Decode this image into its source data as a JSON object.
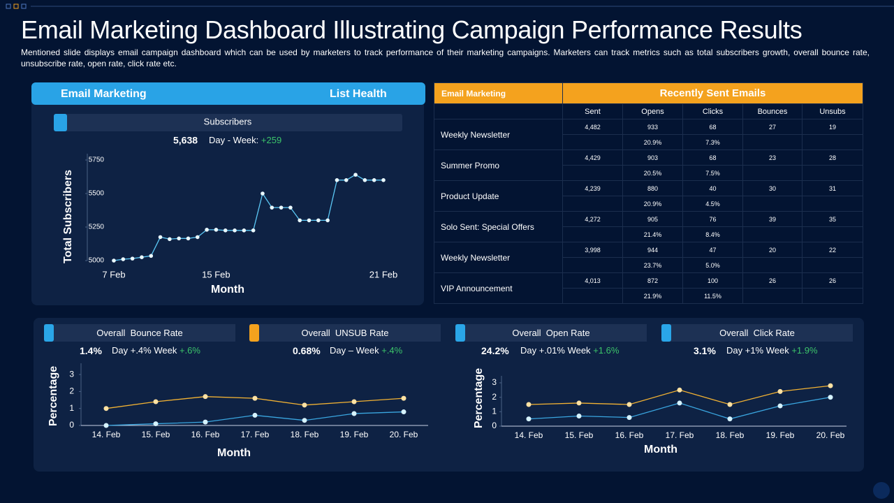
{
  "header": {
    "title": "Email Marketing Dashboard Illustrating Campaign Performance Results",
    "subtitle": "Mentioned slide displays email campaign dashboard which can be used by marketers to track performance  of their marketing campaigns. Marketers can track metrics such as total subscribers growth, overall bounce rate, unsubscribe rate, open rate, click rate etc."
  },
  "list_health": {
    "left_title": "Email Marketing",
    "right_title": "List Health",
    "panel_label": "Subscribers",
    "total": "5,638",
    "change_label": "Day - Week:",
    "change": "+259"
  },
  "table": {
    "left_title": "Email Marketing",
    "right_title": "Recently Sent Emails",
    "columns": [
      "Sent",
      "Opens",
      "Clicks",
      "Bounces",
      "Unsubs"
    ],
    "rows": [
      {
        "name": "Weekly Newsletter",
        "values": [
          "4,482",
          "933",
          "68",
          "27",
          "19"
        ],
        "rates": [
          "20.9%",
          "7.3%"
        ]
      },
      {
        "name": "Summer Promo",
        "values": [
          "4,429",
          "903",
          "68",
          "23",
          "28"
        ],
        "rates": [
          "20.5%",
          "7.5%"
        ]
      },
      {
        "name": "Product Update",
        "values": [
          "4,239",
          "880",
          "40",
          "30",
          "31"
        ],
        "rates": [
          "20.9%",
          "4.5%"
        ]
      },
      {
        "name": "Solo Sent: Special Offers",
        "values": [
          "4,272",
          "905",
          "76",
          "39",
          "35"
        ],
        "rates": [
          "21.4%",
          "8.4%"
        ]
      },
      {
        "name": "Weekly Newsletter",
        "values": [
          "3,998",
          "944",
          "47",
          "20",
          "22"
        ],
        "rates": [
          "23.7%",
          "5.0%"
        ]
      },
      {
        "name": "VIP Announcement",
        "values": [
          "4,013",
          "872",
          "100",
          "26",
          "26"
        ],
        "rates": [
          "21.9%",
          "11.5%"
        ]
      }
    ]
  },
  "kpis": [
    {
      "label": "Overall  Bounce Rate",
      "value": "1.4%",
      "change": "Day +.4% Week",
      "week": "+.6%",
      "color": "#2aa6e8"
    },
    {
      "label": "Overall  UNSUB Rate",
      "value": "0.68%",
      "change": "Day – Week",
      "week": "+.4%",
      "color": "#f4a21e"
    },
    {
      "label": "Overall  Open Rate",
      "value": "24.2%",
      "change": "Day +.01% Week",
      "week": "+1.6%",
      "color": "#2aa6e8"
    },
    {
      "label": "Overall  Click Rate",
      "value": "3.1%",
      "change": "Day +1% Week",
      "week": "+1.9%",
      "color": "#2aa6e8"
    }
  ],
  "chart_data": [
    {
      "type": "line",
      "x_label": "Month",
      "y_label": "Total Subscribers",
      "categories": [
        "7 Feb",
        null,
        null,
        null,
        null,
        null,
        null,
        null,
        null,
        null,
        null,
        "15 Feb",
        null,
        null,
        null,
        null,
        null,
        null,
        null,
        null,
        null,
        null,
        null,
        null,
        null,
        null,
        null,
        null,
        null,
        "21 Feb"
      ],
      "series": [
        {
          "color": "#5bc8f5",
          "values": [
            5000,
            5010,
            5015,
            5025,
            5035,
            5175,
            5160,
            5165,
            5165,
            5175,
            5230,
            5230,
            5225,
            5225,
            5225,
            5225,
            5500,
            5395,
            5395,
            5395,
            5300,
            5300,
            5300,
            5300,
            5600,
            5600,
            5640,
            5600,
            5600,
            5600
          ]
        }
      ],
      "ylim": [
        5000,
        5750
      ],
      "yticks": [
        5000,
        5250,
        5500,
        5750
      ]
    },
    {
      "type": "line",
      "x_label": "Month",
      "y_label": "Percentage",
      "categories": [
        "14. Feb",
        "15. Feb",
        "16. Feb",
        "17. Feb",
        "18. Feb",
        "19. Feb",
        "20. Feb"
      ],
      "series": [
        {
          "color": "#f2b233",
          "values": [
            1.0,
            1.4,
            1.7,
            1.6,
            1.2,
            1.4,
            1.6
          ]
        },
        {
          "color": "#3aa6e0",
          "values": [
            0,
            0.1,
            0.2,
            0.6,
            0.3,
            0.7,
            0.8
          ]
        }
      ],
      "ylim": [
        0,
        3.6
      ],
      "yticks": [
        0,
        1,
        2,
        3
      ]
    },
    {
      "type": "line",
      "x_label": "Month",
      "y_label": "Percentage",
      "categories": [
        "14. Feb",
        "15. Feb",
        "16. Feb",
        "17. Feb",
        "18. Feb",
        "19. Feb",
        "20. Feb"
      ],
      "series": [
        {
          "color": "#f2b233",
          "values": [
            1.5,
            1.6,
            1.5,
            2.5,
            1.5,
            2.4,
            2.8
          ]
        },
        {
          "color": "#3aa6e0",
          "values": [
            0.5,
            0.7,
            0.6,
            1.6,
            0.5,
            1.4,
            2.0
          ]
        }
      ],
      "ylim": [
        0,
        3.4
      ],
      "yticks": [
        0,
        1,
        2,
        3
      ]
    }
  ]
}
